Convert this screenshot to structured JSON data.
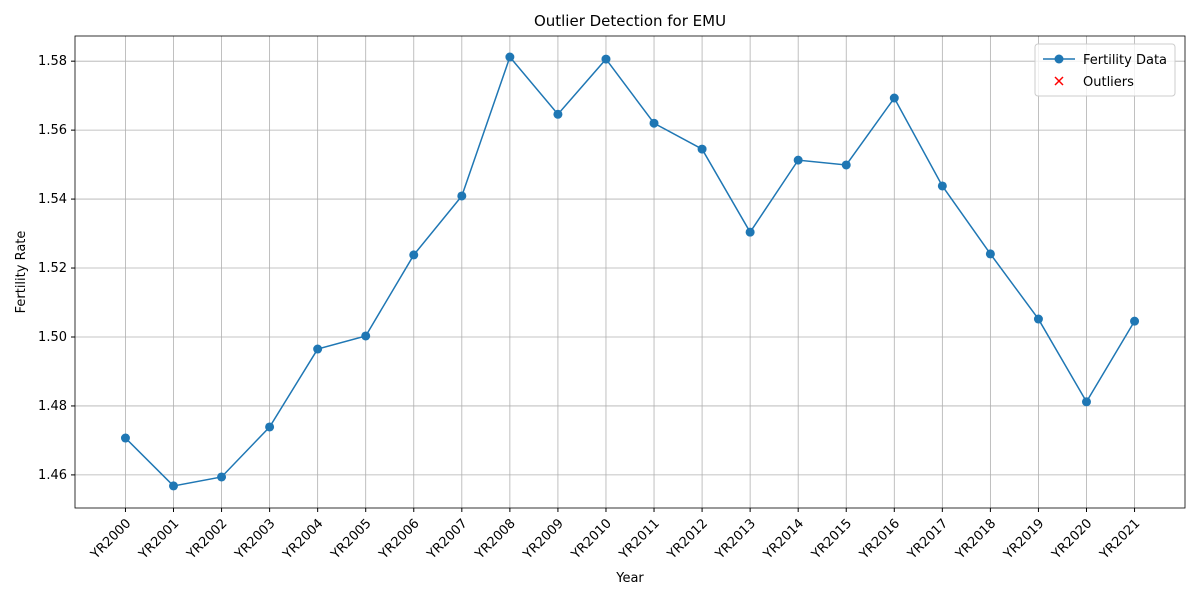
{
  "chart_data": {
    "type": "line",
    "title": "Outlier Detection for EMU",
    "xlabel": "Year",
    "ylabel": "Fertility Rate",
    "categories": [
      "YR2000",
      "YR2001",
      "YR2002",
      "YR2003",
      "YR2004",
      "YR2005",
      "YR2006",
      "YR2007",
      "YR2008",
      "YR2009",
      "YR2010",
      "YR2011",
      "YR2012",
      "YR2013",
      "YR2014",
      "YR2015",
      "YR2016",
      "YR2017",
      "YR2018",
      "YR2019",
      "YR2020",
      "YR2021"
    ],
    "series": [
      {
        "name": "Fertility Data",
        "color": "#1f77b4",
        "marker": "o",
        "values": [
          1.4707,
          1.4568,
          1.4594,
          1.4739,
          1.4965,
          1.5003,
          1.5238,
          1.5409,
          1.5812,
          1.5646,
          1.5806,
          1.562,
          1.5545,
          1.5304,
          1.5513,
          1.5499,
          1.5693,
          1.5438,
          1.5241,
          1.5052,
          1.4812,
          1.5046
        ]
      },
      {
        "name": "Outliers",
        "color": "#ff0000",
        "marker": "x",
        "values": [
          null,
          null,
          null,
          null,
          null,
          null,
          null,
          null,
          null,
          null,
          null,
          null,
          null,
          null,
          null,
          null,
          null,
          null,
          null,
          null,
          null,
          null
        ]
      }
    ],
    "ylim": [
      1.4504,
      1.5873
    ],
    "yticks": [
      1.46,
      1.48,
      {
        "value": 1.5,
        "label": "1.50"
      },
      1.52,
      1.54,
      1.56,
      1.58
    ],
    "grid": true,
    "legend": "upper right"
  }
}
